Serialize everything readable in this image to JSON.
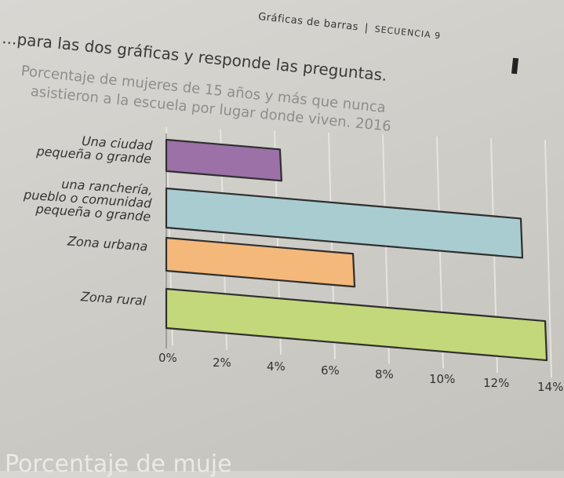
{
  "header": {
    "title": "Gráficas de barras",
    "sequence": "SECUENCIA 9"
  },
  "instructions": "...para las dos gráficas y responde las preguntas.",
  "chart_data": {
    "type": "bar",
    "orientation": "horizontal",
    "title_line1": "Porcentaje de mujeres de 15 años y más que nunca",
    "title_line2": "asistieron a la escuela por lugar donde viven. 2016",
    "categories": [
      "Una ciudad pequeña o grande",
      "una ranchería, pueblo o comunidad pequeña o grande",
      "Zona urbana",
      "Zona rural"
    ],
    "category_lines": [
      [
        "Una ciudad",
        "pequeña o grande"
      ],
      [
        "una ranchería,",
        "pueblo o comunidad",
        "pequeña o grande"
      ],
      [
        "Zona urbana"
      ],
      [
        "Zona rural"
      ]
    ],
    "values": [
      4.2,
      13.1,
      6.9,
      14.0
    ],
    "colors": [
      "#9b71a8",
      "#a9ccd0",
      "#f3b87a",
      "#c2d87a"
    ],
    "xlim": [
      0,
      14
    ],
    "tick_labels": [
      "0%",
      "2%",
      "4%",
      "6%",
      "8%",
      "10%",
      "12%",
      "14%"
    ],
    "grid": true
  },
  "footer_text": "Porcentaje de muje"
}
